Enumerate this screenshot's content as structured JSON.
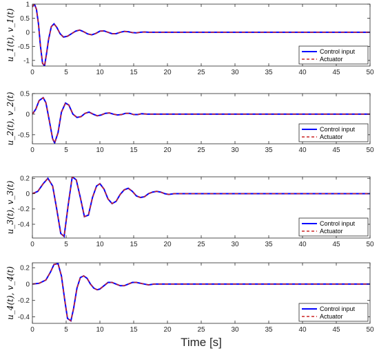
{
  "figure": {
    "xlabel": "Time [s]"
  },
  "legend": {
    "entries": [
      "Control input",
      "Actuator"
    ],
    "placement": "bottom-right"
  },
  "colors": {
    "control_input": "#0000ff",
    "actuator": "#cc2222"
  },
  "chart_data": [
    {
      "type": "line",
      "ylabel": "u_1(t), v_1(t)",
      "xlim": [
        0,
        50
      ],
      "ylim": [
        -1.2,
        1.0
      ],
      "xticks": [
        0,
        5,
        10,
        15,
        20,
        25,
        30,
        35,
        40,
        45,
        50
      ],
      "xticklabels": [
        "0",
        "5",
        "10",
        "15",
        "20",
        "25",
        "30",
        "35",
        "40",
        "45",
        "50"
      ],
      "yticks": [
        1,
        0.5,
        0,
        -0.5,
        -1
      ],
      "yticklabels": [
        "1",
        "0.5",
        "0",
        "-0.5",
        "-1"
      ],
      "series": [
        {
          "name": "Control input",
          "style": "solid",
          "x": [
            0,
            0.3,
            0.6,
            0.9,
            1.2,
            1.5,
            1.8,
            2.1,
            2.4,
            2.8,
            3.2,
            3.6,
            4.1,
            4.6,
            5.2,
            5.8,
            6.4,
            7.0,
            7.6,
            8.2,
            8.8,
            9.4,
            10.0,
            10.6,
            11.2,
            11.8,
            12.4,
            13.0,
            13.6,
            14.2,
            14.8,
            15.4,
            16.0,
            16.6,
            17.2,
            18,
            20,
            22,
            25,
            30,
            40,
            50
          ],
          "y": [
            0.9,
            1.0,
            0.82,
            0.3,
            -0.5,
            -1.1,
            -1.2,
            -0.75,
            -0.25,
            0.2,
            0.3,
            0.18,
            -0.05,
            -0.17,
            -0.14,
            -0.05,
            0.04,
            0.08,
            0.02,
            -0.06,
            -0.09,
            -0.04,
            0.04,
            0.05,
            0.0,
            -0.05,
            -0.05,
            0.0,
            0.03,
            0.02,
            -0.01,
            -0.02,
            0.0,
            0.01,
            0.0,
            0.0,
            0.0,
            0.0,
            0.0,
            0.0,
            0.0,
            0.0
          ]
        },
        {
          "name": "Actuator",
          "style": "dashed",
          "x": [
            0,
            0.3,
            0.6,
            0.9,
            1.2,
            1.5,
            1.8,
            2.1,
            2.4,
            2.8,
            3.2,
            3.6,
            4.1,
            4.6,
            5.2,
            5.8,
            6.4,
            7.0,
            7.6,
            8.2,
            8.8,
            9.4,
            10.0,
            10.6,
            11.2,
            11.8,
            12.4,
            13.0,
            13.6,
            14.2,
            14.8,
            15.4,
            16.0,
            16.6,
            17.2,
            18,
            20,
            22,
            25,
            30,
            40,
            50
          ],
          "y": [
            0.9,
            1.0,
            0.82,
            0.3,
            -0.5,
            -1.1,
            -1.2,
            -0.75,
            -0.25,
            0.2,
            0.3,
            0.18,
            -0.05,
            -0.17,
            -0.14,
            -0.05,
            0.04,
            0.08,
            0.02,
            -0.06,
            -0.09,
            -0.04,
            0.04,
            0.05,
            0.0,
            -0.05,
            -0.05,
            0.0,
            0.03,
            0.02,
            -0.01,
            -0.02,
            0.0,
            0.01,
            0.0,
            0.0,
            0.0,
            0.0,
            0.0,
            0.0,
            0.0,
            0.0
          ]
        }
      ]
    },
    {
      "type": "line",
      "ylabel": "u_2(t), v_2(t)",
      "xlim": [
        0,
        50
      ],
      "ylim": [
        -0.72,
        0.5
      ],
      "xticks": [
        0,
        5,
        10,
        15,
        20,
        25,
        30,
        35,
        40,
        45,
        50
      ],
      "xticklabels": [
        "0",
        "5",
        "10",
        "15",
        "20",
        "25",
        "30",
        "35",
        "40",
        "45",
        "50"
      ],
      "yticks": [
        0.5,
        0,
        -0.5
      ],
      "yticklabels": [
        "0.5",
        "0",
        "-0.5"
      ],
      "series": [
        {
          "name": "Control input",
          "style": "solid",
          "x": [
            0,
            0.5,
            1.0,
            1.6,
            2.0,
            2.5,
            3.0,
            3.3,
            3.8,
            4.3,
            4.9,
            5.4,
            6.0,
            6.6,
            7.2,
            7.8,
            8.4,
            9.0,
            9.6,
            10.2,
            10.8,
            11.4,
            12.0,
            12.6,
            13.2,
            13.8,
            14.4,
            15.0,
            15.6,
            16.2,
            17,
            18,
            20,
            22,
            25,
            30,
            40,
            50
          ],
          "y": [
            0,
            0.12,
            0.33,
            0.4,
            0.28,
            -0.15,
            -0.6,
            -0.7,
            -0.45,
            0.05,
            0.27,
            0.22,
            0.0,
            -0.08,
            -0.06,
            0.02,
            0.05,
            0.0,
            -0.04,
            -0.02,
            0.02,
            0.03,
            0.0,
            -0.02,
            -0.01,
            0.02,
            0.02,
            -0.01,
            -0.01,
            0.01,
            0.0,
            0.0,
            0.0,
            0.0,
            0.0,
            0.0,
            0.0,
            0.0
          ]
        },
        {
          "name": "Actuator",
          "style": "dashed",
          "x": [
            0,
            0.5,
            1.0,
            1.6,
            2.0,
            2.5,
            3.0,
            3.3,
            3.8,
            4.3,
            4.9,
            5.4,
            6.0,
            6.6,
            7.2,
            7.8,
            8.4,
            9.0,
            9.6,
            10.2,
            10.8,
            11.4,
            12.0,
            12.6,
            13.2,
            13.8,
            14.4,
            15.0,
            15.6,
            16.2,
            17,
            18,
            20,
            22,
            25,
            30,
            40,
            50
          ],
          "y": [
            0,
            0.12,
            0.33,
            0.4,
            0.28,
            -0.15,
            -0.6,
            -0.7,
            -0.45,
            0.05,
            0.27,
            0.22,
            0.0,
            -0.08,
            -0.06,
            0.02,
            0.05,
            0.0,
            -0.04,
            -0.02,
            0.02,
            0.03,
            0.0,
            -0.02,
            -0.01,
            0.02,
            0.02,
            -0.01,
            -0.01,
            0.01,
            0.0,
            0.0,
            0.0,
            0.0,
            0.0,
            0.0,
            0.0,
            0.0
          ]
        }
      ]
    },
    {
      "type": "line",
      "ylabel": "u_3(t), v_3(t)",
      "xlim": [
        0,
        50
      ],
      "ylim": [
        -0.58,
        0.22
      ],
      "xticks": [
        0,
        5,
        10,
        15,
        20,
        25,
        30,
        35,
        40,
        45,
        50
      ],
      "xticklabels": [
        "0",
        "5",
        "10",
        "15",
        "20",
        "25",
        "30",
        "35",
        "40",
        "45",
        "50"
      ],
      "yticks": [
        0.2,
        0,
        -0.2,
        -0.4
      ],
      "yticklabels": [
        "0.2",
        "0",
        "-0.2",
        "-0.4"
      ],
      "series": [
        {
          "name": "Control input",
          "style": "solid",
          "x": [
            0,
            0.8,
            1.6,
            2.3,
            3.0,
            3.6,
            4.2,
            4.7,
            5.3,
            5.9,
            6.5,
            7.1,
            7.7,
            8.3,
            8.9,
            9.5,
            10.0,
            10.6,
            11.2,
            11.8,
            12.4,
            13.0,
            13.6,
            14.2,
            14.8,
            15.4,
            16.0,
            16.6,
            17.2,
            17.8,
            18.4,
            19.0,
            19.6,
            20.2,
            21,
            22,
            24,
            26,
            30,
            40,
            50
          ],
          "y": [
            0,
            0.03,
            0.13,
            0.2,
            0.1,
            -0.2,
            -0.52,
            -0.56,
            -0.15,
            0.22,
            0.18,
            -0.05,
            -0.3,
            -0.28,
            -0.05,
            0.1,
            0.13,
            0.06,
            -0.07,
            -0.13,
            -0.1,
            -0.01,
            0.05,
            0.07,
            0.03,
            -0.03,
            -0.05,
            -0.04,
            0.0,
            0.02,
            0.03,
            0.02,
            0.0,
            -0.01,
            0.0,
            0.0,
            0.0,
            0.0,
            0.0,
            0.0,
            0.0
          ]
        },
        {
          "name": "Actuator",
          "style": "dashed",
          "x": [
            0,
            0.8,
            1.6,
            2.3,
            3.0,
            3.6,
            4.2,
            4.7,
            5.3,
            5.9,
            6.5,
            7.1,
            7.7,
            8.3,
            8.9,
            9.5,
            10.0,
            10.6,
            11.2,
            11.8,
            12.4,
            13.0,
            13.6,
            14.2,
            14.8,
            15.4,
            16.0,
            16.6,
            17.2,
            17.8,
            18.4,
            19.0,
            19.6,
            20.2,
            21,
            22,
            24,
            26,
            30,
            40,
            50
          ],
          "y": [
            0,
            0.03,
            0.13,
            0.2,
            0.1,
            -0.2,
            -0.52,
            -0.56,
            -0.15,
            0.22,
            0.18,
            -0.05,
            -0.3,
            -0.28,
            -0.05,
            0.1,
            0.13,
            0.06,
            -0.07,
            -0.13,
            -0.1,
            -0.01,
            0.05,
            0.07,
            0.03,
            -0.03,
            -0.05,
            -0.04,
            0.0,
            0.02,
            0.03,
            0.02,
            0.0,
            -0.01,
            0.0,
            0.0,
            0.0,
            0.0,
            0.0,
            0.0,
            0.0
          ]
        }
      ]
    },
    {
      "type": "line",
      "ylabel": "u_4(t), v_4(t)",
      "xlim": [
        0,
        50
      ],
      "ylim": [
        -0.48,
        0.26
      ],
      "xticks": [
        0,
        5,
        10,
        15,
        20,
        25,
        30,
        35,
        40,
        45,
        50
      ],
      "xticklabels": [
        "0",
        "5",
        "10",
        "15",
        "20",
        "25",
        "30",
        "35",
        "40",
        "45",
        "50"
      ],
      "yticks": [
        0.2,
        0,
        -0.2,
        -0.4
      ],
      "yticklabels": [
        "0.2",
        "0",
        "-0.2",
        "-0.4"
      ],
      "series": [
        {
          "name": "Control input",
          "style": "solid",
          "x": [
            0,
            1.0,
            2.0,
            2.7,
            3.2,
            3.8,
            4.3,
            4.8,
            5.2,
            5.7,
            6.1,
            6.6,
            7.1,
            7.6,
            8.1,
            8.6,
            9.1,
            9.6,
            10.0,
            10.6,
            11.2,
            11.8,
            12.4,
            13.0,
            13.6,
            14.2,
            14.8,
            15.4,
            16.0,
            16.6,
            17.2,
            18,
            19,
            20,
            22,
            25,
            30,
            40,
            50
          ],
          "y": [
            0,
            0.01,
            0.05,
            0.15,
            0.24,
            0.25,
            0.1,
            -0.2,
            -0.42,
            -0.45,
            -0.3,
            -0.05,
            0.08,
            0.1,
            0.07,
            0.0,
            -0.05,
            -0.07,
            -0.06,
            -0.02,
            0.02,
            0.02,
            0.0,
            -0.02,
            -0.02,
            0.0,
            0.02,
            0.02,
            0.01,
            0.0,
            -0.01,
            0.0,
            0.0,
            0.0,
            0.0,
            0.0,
            0.0,
            0.0,
            0.0
          ]
        },
        {
          "name": "Actuator",
          "style": "dashed",
          "x": [
            0,
            1.0,
            2.0,
            2.7,
            3.2,
            3.8,
            4.3,
            4.8,
            5.2,
            5.7,
            6.1,
            6.6,
            7.1,
            7.6,
            8.1,
            8.6,
            9.1,
            9.6,
            10.0,
            10.6,
            11.2,
            11.8,
            12.4,
            13.0,
            13.6,
            14.2,
            14.8,
            15.4,
            16.0,
            16.6,
            17.2,
            18,
            19,
            20,
            22,
            25,
            30,
            40,
            50
          ],
          "y": [
            0,
            0.01,
            0.05,
            0.15,
            0.24,
            0.25,
            0.1,
            -0.2,
            -0.42,
            -0.45,
            -0.3,
            -0.05,
            0.08,
            0.1,
            0.07,
            0.0,
            -0.05,
            -0.07,
            -0.06,
            -0.02,
            0.02,
            0.02,
            0.0,
            -0.02,
            -0.02,
            0.0,
            0.02,
            0.02,
            0.01,
            0.0,
            -0.01,
            0.0,
            0.0,
            0.0,
            0.0,
            0.0,
            0.0,
            0.0,
            0.0
          ]
        }
      ]
    }
  ]
}
